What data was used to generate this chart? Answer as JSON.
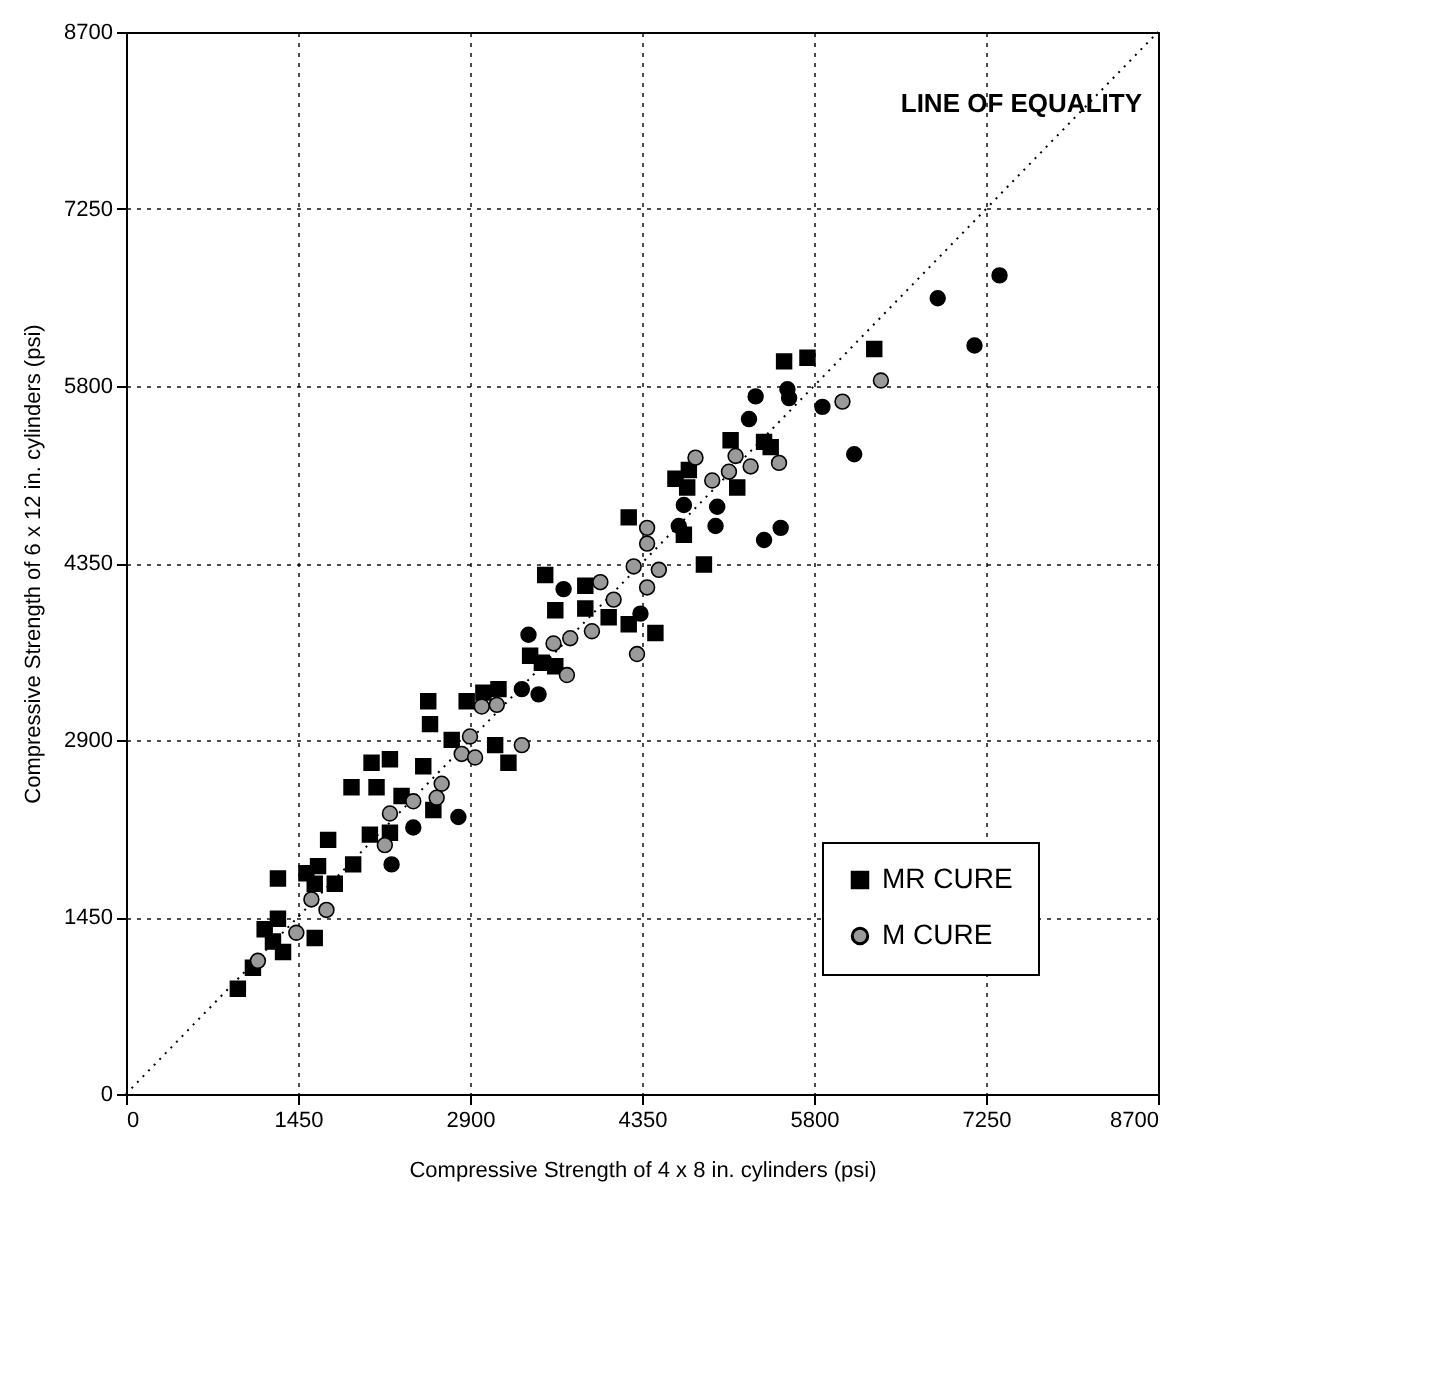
{
  "chart_data": {
    "type": "scatter",
    "xlabel": "Compressive Strength of 4 x 8 in. cylinders (psi)",
    "ylabel": "Compressive Strength of 6 x 12 in. cylinders (psi)",
    "xlim": [
      0,
      8700
    ],
    "ylim": [
      0,
      8700
    ],
    "xticks": [
      0,
      1450,
      2900,
      4350,
      5800,
      7250,
      8700
    ],
    "yticks": [
      0,
      1450,
      2900,
      4350,
      5800,
      7250,
      8700
    ],
    "grid": true,
    "legend": "bottom right",
    "annotations": [
      "LINE OF EQUALITY"
    ],
    "series": [
      {
        "name": "MR CURE",
        "color": "#000000",
        "marker": "square",
        "x": [
          943,
          1070,
          1169,
          1239,
          1324,
          1281,
          1591,
          1521,
          1619,
          1281,
          1591,
          1760,
          1704,
          1915,
          2056,
          2225,
          1901,
          2112,
          2323,
          2070,
          2225,
          2591,
          2746,
          2506,
          2548,
          2563,
          2872,
          3013,
          3140,
          3224,
          3112,
          3407,
          3506,
          3619,
          3619,
          3534,
          3872,
          3872,
          4069,
          4238,
          4463,
          4238,
          4872,
          4703,
          5548,
          5745,
          6308,
          5097,
          5379,
          5435,
          4632,
          4745,
          4731,
          5153
        ],
        "values": [
          862,
          1034,
          1350,
          1249,
          1163,
          1436,
          1278,
          1809,
          1867,
          1766,
          1723,
          1723,
          2082,
          1881,
          2125,
          2140,
          2513,
          2513,
          2441,
          2714,
          2743,
          2326,
          2901,
          2685,
          3217,
          3030,
          3217,
          3288,
          3317,
          2714,
          2858,
          3590,
          3533,
          3504,
          3963,
          4251,
          4164,
          3978,
          3906,
          3848,
          3777,
          4724,
          4337,
          4581,
          6002,
          6031,
          6103,
          5356,
          5342,
          5299,
          5040,
          5112,
          4969,
          4969
        ]
      },
      {
        "name": "M CURE",
        "color": "#9a9a9a",
        "marker": "circle",
        "x": [
          1112,
          1436,
          1563,
          1690,
          2182,
          2422,
          2225,
          2661,
          2619,
          2830,
          2943,
          2900,
          2999,
          3126,
          3337,
          3745,
          3928,
          3717,
          3604,
          3999,
          4111,
          4308,
          4393,
          4492,
          4393,
          4801,
          5139,
          4942,
          5083,
          5266,
          5505,
          6364,
          6040,
          4393,
          4280
        ],
        "values": [
          1091,
          1321,
          1594,
          1508,
          2039,
          2398,
          2298,
          2542,
          2427,
          2786,
          2757,
          2929,
          3174,
          3188,
          2858,
          3734,
          3791,
          3432,
          3691,
          4193,
          4050,
          3604,
          4509,
          4294,
          4150,
          5213,
          5227,
          5026,
          5098,
          5141,
          5170,
          5845,
          5672,
          4638,
          4322
        ]
      },
      {
        "color": "#000000",
        "marker": "circle",
        "x": [
          2239,
          2422,
          2802,
          3689,
          3393,
          3478,
          3337,
          4703,
          4984,
          5379,
          4660,
          4337,
          7364,
          6843,
          7153,
          5308,
          5576,
          5590,
          5252,
          5871,
          6139,
          4970,
          5519
        ],
        "values": [
          1881,
          2183,
          2269,
          4136,
          3762,
          3274,
          3317,
          4825,
          4811,
          4538,
          4653,
          3935,
          6706,
          6519,
          6132,
          5715,
          5773,
          5701,
          5529,
          5629,
          5241,
          4653,
          4638
        ]
      },
      {
        "type": "line",
        "color": "#000000",
        "line_style": "dotted",
        "x": [
          0,
          8700
        ],
        "values": [
          0,
          8700
        ]
      }
    ]
  }
}
